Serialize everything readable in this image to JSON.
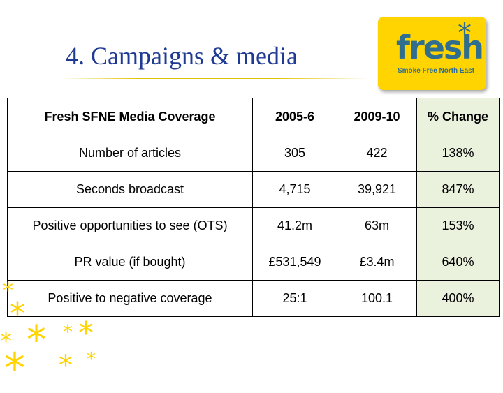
{
  "slide": {
    "title": "4. Campaigns & media",
    "logo": {
      "word": "fresh",
      "tagline": "Smoke Free North East",
      "accent": "#ffd400",
      "text_color": "#2f6e8f"
    }
  },
  "table": {
    "headers": [
      "Fresh SFNE Media Coverage",
      "2005-6",
      "2009-10",
      "% Change"
    ],
    "rows": [
      [
        "Number of articles",
        "305",
        "422",
        "138%"
      ],
      [
        "Seconds broadcast",
        "4,715",
        "39,921",
        "847%"
      ],
      [
        "Positive opportunities to see (OTS)",
        "41.2m",
        "63m",
        "153%"
      ],
      [
        "PR value (if bought)",
        "£531,549",
        "£3.4m",
        "640%"
      ],
      [
        "Positive to negative coverage",
        "25:1",
        "100.1",
        "400%"
      ]
    ],
    "highlight_color": "#eaf1dd"
  },
  "decor": {
    "icons": [
      "asterisk-star-icon"
    ]
  }
}
